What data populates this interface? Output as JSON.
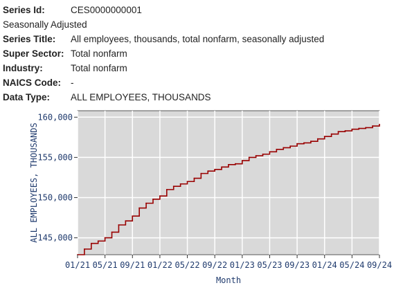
{
  "meta": {
    "series_id_label": "Series Id:",
    "series_id": "CES0000000001",
    "seasonal": "Seasonally Adjusted",
    "series_title_label": "Series Title:",
    "series_title": "All employees, thousands, total nonfarm, seasonally adjusted",
    "super_sector_label": "Super Sector:",
    "super_sector": "Total nonfarm",
    "industry_label": "Industry:",
    "industry": "Total nonfarm",
    "naics_label": "NAICS Code:",
    "naics": "-",
    "data_type_label": "Data Type:",
    "data_type": "ALL EMPLOYEES, THOUSANDS"
  },
  "colors": {
    "line": "#990000",
    "plot_bg": "#d9d9d9",
    "axis_text": "#1f3a6d",
    "grid": "#ffffff"
  },
  "chart_data": {
    "type": "line",
    "xlabel": "Month",
    "ylabel": "ALL EMPLOYEES, THOUSANDS",
    "x_ticks": [
      "01/21",
      "05/21",
      "09/21",
      "01/22",
      "05/22",
      "09/22",
      "01/23",
      "05/23",
      "09/23",
      "01/24",
      "05/24",
      "09/24"
    ],
    "y_ticks": [
      "145,000",
      "150,000",
      "155,000",
      "160,000"
    ],
    "y_tick_values": [
      145000,
      150000,
      155000,
      160000
    ],
    "ylim": [
      142900,
      160800
    ],
    "grid": true,
    "series": [
      {
        "x": [
          "01/21",
          "02/21",
          "03/21",
          "04/21",
          "05/21",
          "06/21",
          "07/21",
          "08/21",
          "09/21",
          "10/21",
          "11/21",
          "12/21",
          "01/22",
          "02/22",
          "03/22",
          "04/22",
          "05/22",
          "06/22",
          "07/22",
          "08/22",
          "09/22",
          "10/22",
          "11/22",
          "12/22",
          "01/23",
          "02/23",
          "03/23",
          "04/23",
          "05/23",
          "06/23",
          "07/23",
          "08/23",
          "09/23",
          "10/23",
          "11/23",
          "12/23",
          "01/24",
          "02/24",
          "03/24",
          "04/24",
          "05/24",
          "06/24",
          "07/24",
          "08/24",
          "09/24"
        ],
        "values": [
          142900,
          143600,
          144300,
          144600,
          145000,
          145700,
          146600,
          147100,
          147700,
          148700,
          149300,
          149800,
          150200,
          151000,
          151400,
          151700,
          152000,
          152400,
          153000,
          153300,
          153500,
          153800,
          154100,
          154200,
          154600,
          155000,
          155200,
          155400,
          155700,
          156000,
          156200,
          156400,
          156700,
          156800,
          157000,
          157300,
          157600,
          157900,
          158200,
          158300,
          158500,
          158600,
          158700,
          158900,
          159100
        ]
      }
    ]
  }
}
